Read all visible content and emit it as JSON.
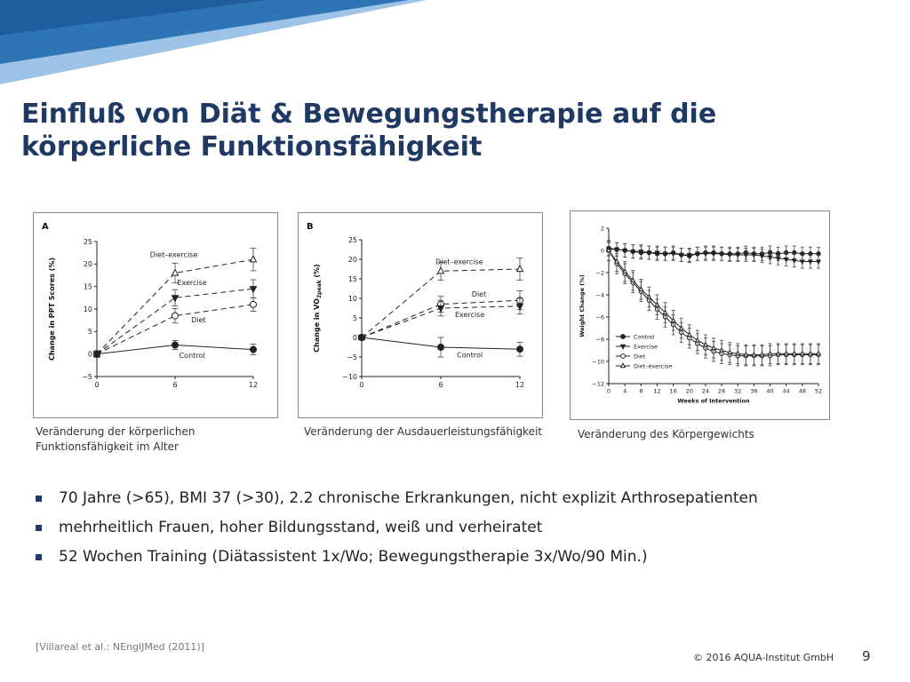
{
  "slide": {
    "title_lines": [
      "Einfluß von Diät & Bewegungstherapie auf die",
      "körperliche Funktionsfähigkeit"
    ],
    "captions": [
      [
        "Veränderung der körperlichen",
        "Funktionsfähigkeit im Alter"
      ],
      [
        "Veränderung der Ausdauerleistungsfähigkeit"
      ],
      [
        "Veränderung des Körpergewichts"
      ]
    ],
    "bullets": [
      "70 Jahre (>65), BMI 37 (>30), 2.2 chronische Erkrankungen, nicht explizit Arthrosepatienten",
      "mehrheitlich Frauen, hoher Bildungsstand, weiß und verheiratet",
      "52 Wochen Training (Diätassistent 1x/Wo; Bewegungstherapie 3x/Wo/90 Min.)"
    ],
    "reference": "[Villareal et al.: NEnglJMed (2011)]",
    "copyright": "© 2016 AQUA-Institut GmbH",
    "page_number": "9",
    "colors": {
      "title": "#1f3864",
      "banner_dark": "#2e75b6",
      "banner_light": "#9dc3e6"
    }
  },
  "chart_data": [
    {
      "type": "line",
      "panel_label": "A",
      "xlabel": "",
      "ylabel": "Change in PPT Scores (%)",
      "x": [
        0,
        6,
        12
      ],
      "xticks": [
        0,
        6,
        12
      ],
      "ylim": [
        -5,
        25
      ],
      "yticks": [
        -5,
        0,
        5,
        10,
        15,
        20,
        25
      ],
      "series": [
        {
          "name": "Diet–exercise",
          "values": [
            0,
            18,
            21
          ],
          "err": [
            0.7,
            2.2,
            2.5
          ],
          "marker": "triangle-open",
          "dash": "6,4"
        },
        {
          "name": "Exercise",
          "values": [
            0,
            12.5,
            14.5
          ],
          "err": [
            0.7,
            1.8,
            2.0
          ],
          "marker": "triangle-down-filled",
          "dash": "6,4"
        },
        {
          "name": "Diet",
          "values": [
            0,
            8.5,
            11
          ],
          "err": [
            0.7,
            1.6,
            1.5
          ],
          "marker": "circle-open",
          "dash": "6,4"
        },
        {
          "name": "Control",
          "values": [
            0,
            2,
            1
          ],
          "err": [
            0.7,
            1.0,
            1.2
          ],
          "marker": "circle-filled",
          "dash": ""
        }
      ],
      "labels": [
        {
          "text": "Diet–exercise",
          "x": 5.9,
          "y": 21.5
        },
        {
          "text": "Exercise",
          "x": 7.3,
          "y": 15.3
        },
        {
          "text": "Diet",
          "x": 7.8,
          "y": 7.0
        },
        {
          "text": "Control",
          "x": 7.3,
          "y": -0.9
        }
      ]
    },
    {
      "type": "line",
      "panel_label": "B",
      "xlabel": "",
      "ylabel": "Change in VO2peak (%)",
      "x": [
        0,
        6,
        12
      ],
      "xticks": [
        0,
        6,
        12
      ],
      "ylim": [
        -10,
        25
      ],
      "yticks": [
        -10,
        -5,
        0,
        5,
        10,
        15,
        20,
        25
      ],
      "series": [
        {
          "name": "Diet–exercise",
          "values": [
            0,
            17,
            17.5
          ],
          "err": [
            0.6,
            2.3,
            2.8
          ],
          "marker": "triangle-open",
          "dash": "6,4"
        },
        {
          "name": "Diet",
          "values": [
            0,
            8.5,
            9.5
          ],
          "err": [
            0.6,
            2.0,
            2.4
          ],
          "marker": "circle-open",
          "dash": "6,4"
        },
        {
          "name": "Exercise",
          "values": [
            0,
            7.5,
            8
          ],
          "err": [
            0.6,
            2.0,
            2.0
          ],
          "marker": "triangle-down-filled",
          "dash": "6,4"
        },
        {
          "name": "Control",
          "values": [
            0,
            -2.5,
            -3
          ],
          "err": [
            0.6,
            2.5,
            1.8
          ],
          "marker": "circle-filled",
          "dash": ""
        }
      ],
      "labels": [
        {
          "text": "Diet–exercise",
          "x": 7.4,
          "y": 18.8
        },
        {
          "text": "Diet",
          "x": 8.9,
          "y": 10.5
        },
        {
          "text": "Exercise",
          "x": 8.2,
          "y": 5.2
        },
        {
          "text": "Control",
          "x": 8.2,
          "y": -5.1
        }
      ]
    },
    {
      "type": "line",
      "panel_label": "",
      "xlabel": "Weeks of Intervention",
      "ylabel": "Weight Change (%)",
      "x": [
        0,
        2,
        4,
        6,
        8,
        10,
        12,
        14,
        16,
        18,
        20,
        22,
        24,
        26,
        28,
        30,
        32,
        34,
        36,
        38,
        40,
        42,
        44,
        46,
        48,
        50,
        52
      ],
      "xticks": [
        0,
        4,
        8,
        12,
        16,
        20,
        24,
        28,
        32,
        36,
        40,
        44,
        48,
        52
      ],
      "ylim": [
        -12,
        2
      ],
      "yticks": [
        -12,
        -10,
        -8,
        -6,
        -4,
        -2,
        0,
        2
      ],
      "series": [
        {
          "name": "Control",
          "values": [
            0.2,
            0.1,
            0.0,
            -0.1,
            -0.2,
            -0.2,
            -0.3,
            -0.3,
            -0.2,
            -0.4,
            -0.5,
            -0.3,
            -0.2,
            -0.2,
            -0.3,
            -0.3,
            -0.3,
            -0.2,
            -0.3,
            -0.3,
            -0.2,
            -0.3,
            -0.2,
            -0.2,
            -0.3,
            -0.3,
            -0.3
          ],
          "err": 0.6,
          "marker": "circle-filled",
          "dash": ""
        },
        {
          "name": "Exercise",
          "values": [
            0.1,
            0.1,
            0.0,
            -0.1,
            -0.1,
            -0.2,
            -0.2,
            -0.3,
            -0.3,
            -0.4,
            -0.4,
            -0.3,
            -0.3,
            -0.3,
            -0.3,
            -0.4,
            -0.4,
            -0.4,
            -0.4,
            -0.5,
            -0.6,
            -0.7,
            -0.8,
            -0.9,
            -1.0,
            -1.0,
            -1.0
          ],
          "err": 0.6,
          "marker": "triangle-down-filled",
          "dash": ""
        },
        {
          "name": "Diet",
          "values": [
            0,
            -1.2,
            -2.1,
            -2.9,
            -3.7,
            -4.5,
            -5.3,
            -6.0,
            -6.7,
            -7.4,
            -7.9,
            -8.4,
            -8.8,
            -9.1,
            -9.3,
            -9.4,
            -9.5,
            -9.5,
            -9.5,
            -9.5,
            -9.5,
            -9.4,
            -9.4,
            -9.4,
            -9.4,
            -9.4,
            -9.4
          ],
          "err": 0.9,
          "marker": "circle-open",
          "dash": ""
        },
        {
          "name": "Diet–exercise",
          "values": [
            0,
            -1.0,
            -1.9,
            -2.7,
            -3.5,
            -4.2,
            -4.9,
            -5.6,
            -6.3,
            -7.0,
            -7.6,
            -8.1,
            -8.5,
            -8.8,
            -9.0,
            -9.2,
            -9.3,
            -9.4,
            -9.4,
            -9.4,
            -9.3,
            -9.3,
            -9.3,
            -9.3,
            -9.3,
            -9.3,
            -9.3
          ],
          "err": 0.9,
          "marker": "triangle-open",
          "dash": ""
        }
      ],
      "legend": {
        "position": "left",
        "entries": [
          "Control",
          "Exercise",
          "Diet",
          "Diet–exercise"
        ]
      }
    }
  ]
}
